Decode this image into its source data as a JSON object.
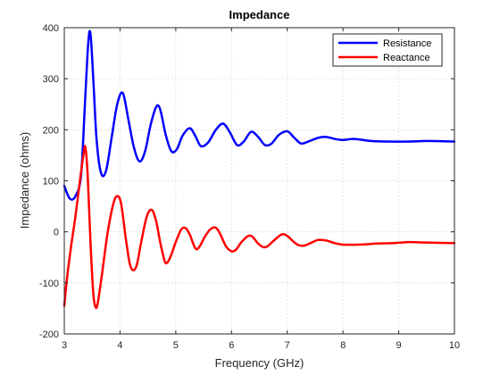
{
  "chart_data": {
    "type": "line",
    "title": "Impedance",
    "xlabel": "Frequency (GHz)",
    "ylabel": "Impedance (ohms)",
    "xlim": [
      3,
      10
    ],
    "ylim": [
      -200,
      400
    ],
    "xticks": [
      3,
      4,
      5,
      6,
      7,
      8,
      9,
      10
    ],
    "yticks": [
      -200,
      -100,
      0,
      100,
      200,
      300,
      400
    ],
    "grid": true,
    "legend_position": "top-right",
    "series": [
      {
        "name": "Resistance",
        "color": "#0000ff",
        "points": [
          [
            3.0,
            90
          ],
          [
            3.1,
            65
          ],
          [
            3.2,
            70
          ],
          [
            3.3,
            110
          ],
          [
            3.37,
            250
          ],
          [
            3.43,
            370
          ],
          [
            3.47,
            388
          ],
          [
            3.52,
            300
          ],
          [
            3.58,
            180
          ],
          [
            3.66,
            115
          ],
          [
            3.75,
            120
          ],
          [
            3.85,
            185
          ],
          [
            3.95,
            250
          ],
          [
            4.05,
            272
          ],
          [
            4.15,
            220
          ],
          [
            4.25,
            165
          ],
          [
            4.35,
            138
          ],
          [
            4.45,
            158
          ],
          [
            4.55,
            210
          ],
          [
            4.65,
            245
          ],
          [
            4.72,
            240
          ],
          [
            4.82,
            190
          ],
          [
            4.92,
            158
          ],
          [
            5.02,
            162
          ],
          [
            5.12,
            188
          ],
          [
            5.25,
            203
          ],
          [
            5.35,
            188
          ],
          [
            5.45,
            168
          ],
          [
            5.58,
            175
          ],
          [
            5.72,
            200
          ],
          [
            5.85,
            212
          ],
          [
            5.97,
            195
          ],
          [
            6.1,
            170
          ],
          [
            6.22,
            177
          ],
          [
            6.35,
            196
          ],
          [
            6.47,
            187
          ],
          [
            6.6,
            170
          ],
          [
            6.72,
            173
          ],
          [
            6.85,
            190
          ],
          [
            7.0,
            197
          ],
          [
            7.12,
            185
          ],
          [
            7.25,
            173
          ],
          [
            7.4,
            178
          ],
          [
            7.55,
            184
          ],
          [
            7.7,
            186
          ],
          [
            7.85,
            182
          ],
          [
            8.0,
            180
          ],
          [
            8.2,
            182
          ],
          [
            8.5,
            178
          ],
          [
            8.8,
            177
          ],
          [
            9.2,
            177
          ],
          [
            9.5,
            178
          ],
          [
            10.0,
            177
          ]
        ]
      },
      {
        "name": "Reactance",
        "color": "#ff0000",
        "points": [
          [
            3.0,
            -145
          ],
          [
            3.05,
            -90
          ],
          [
            3.12,
            -30
          ],
          [
            3.2,
            30
          ],
          [
            3.28,
            100
          ],
          [
            3.35,
            155
          ],
          [
            3.38,
            165
          ],
          [
            3.42,
            110
          ],
          [
            3.47,
            -20
          ],
          [
            3.52,
            -120
          ],
          [
            3.56,
            -147
          ],
          [
            3.6,
            -140
          ],
          [
            3.68,
            -80
          ],
          [
            3.78,
            0
          ],
          [
            3.88,
            55
          ],
          [
            3.95,
            70
          ],
          [
            4.02,
            55
          ],
          [
            4.1,
            -10
          ],
          [
            4.17,
            -60
          ],
          [
            4.23,
            -75
          ],
          [
            4.3,
            -65
          ],
          [
            4.38,
            -20
          ],
          [
            4.48,
            30
          ],
          [
            4.57,
            43
          ],
          [
            4.65,
            20
          ],
          [
            4.72,
            -20
          ],
          [
            4.8,
            -57
          ],
          [
            4.85,
            -60
          ],
          [
            4.92,
            -45
          ],
          [
            5.0,
            -20
          ],
          [
            5.1,
            5
          ],
          [
            5.18,
            7
          ],
          [
            5.25,
            -5
          ],
          [
            5.35,
            -32
          ],
          [
            5.42,
            -30
          ],
          [
            5.52,
            -10
          ],
          [
            5.62,
            5
          ],
          [
            5.72,
            8
          ],
          [
            5.8,
            -5
          ],
          [
            5.9,
            -28
          ],
          [
            6.0,
            -38
          ],
          [
            6.08,
            -35
          ],
          [
            6.18,
            -20
          ],
          [
            6.3,
            -8
          ],
          [
            6.38,
            -10
          ],
          [
            6.47,
            -22
          ],
          [
            6.57,
            -30
          ],
          [
            6.65,
            -28
          ],
          [
            6.75,
            -18
          ],
          [
            6.9,
            -5
          ],
          [
            7.0,
            -8
          ],
          [
            7.1,
            -18
          ],
          [
            7.2,
            -26
          ],
          [
            7.3,
            -27
          ],
          [
            7.42,
            -22
          ],
          [
            7.55,
            -16
          ],
          [
            7.7,
            -17
          ],
          [
            7.85,
            -22
          ],
          [
            8.0,
            -25
          ],
          [
            8.3,
            -25
          ],
          [
            8.6,
            -23
          ],
          [
            8.9,
            -22
          ],
          [
            9.2,
            -20
          ],
          [
            9.5,
            -21
          ],
          [
            10.0,
            -22
          ]
        ]
      }
    ]
  }
}
